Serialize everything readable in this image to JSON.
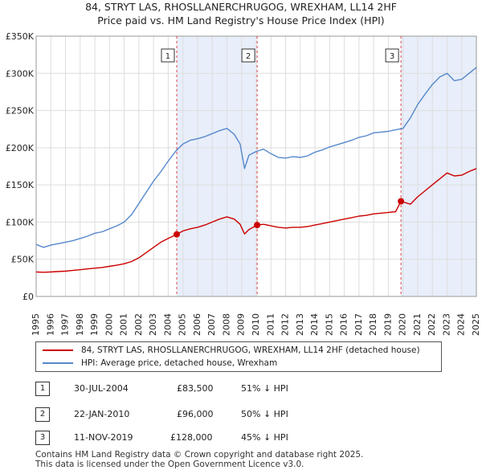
{
  "title_line1": "84, STRYT LAS, RHOSLLANERCHRUGOG, WREXHAM, LL14 2HF",
  "title_line2": "Price paid vs. HM Land Registry's House Price Index (HPI)",
  "legend": [
    {
      "label": "84, STRYT LAS, RHOSLLANERCHRUGOG, WREXHAM, LL14 2HF (detached house)",
      "color": "#cc0000"
    },
    {
      "label": "HPI: Average price, detached house, Wrexham",
      "color": "#5588cc"
    }
  ],
  "transactions": [
    {
      "num": "1",
      "date": "30-JUL-2004",
      "price": "£83,500",
      "hpi": "51% ↓ HPI"
    },
    {
      "num": "2",
      "date": "22-JAN-2010",
      "price": "£96,000",
      "hpi": "50% ↓ HPI"
    },
    {
      "num": "3",
      "date": "11-NOV-2019",
      "price": "£128,000",
      "hpi": "45% ↓ HPI"
    }
  ],
  "footer_line1": "Contains HM Land Registry data © Crown copyright and database right 2025.",
  "footer_line2": "This data is licensed under the Open Government Licence v3.0.",
  "chart_data": {
    "type": "line",
    "title": "Price paid vs. HM Land Registry's House Price Index (HPI)",
    "xlabel": "",
    "ylabel": "",
    "xlim": [
      1995,
      2025
    ],
    "ylim": [
      0,
      350000
    ],
    "y_ticks": [
      0,
      50000,
      100000,
      150000,
      200000,
      250000,
      300000,
      350000
    ],
    "y_tick_labels": [
      "£0",
      "£50K",
      "£100K",
      "£150K",
      "£200K",
      "£250K",
      "£300K",
      "£350K"
    ],
    "x_ticks": [
      1995,
      1996,
      1997,
      1998,
      1999,
      2000,
      2001,
      2002,
      2003,
      2004,
      2005,
      2006,
      2007,
      2008,
      2009,
      2010,
      2011,
      2012,
      2013,
      2014,
      2015,
      2016,
      2017,
      2018,
      2019,
      2020,
      2021,
      2022,
      2023,
      2024,
      2025
    ],
    "series": [
      {
        "name": "HPI: Average price, detached house, Wrexham",
        "color": "#5588cc",
        "x": [
          1995.0,
          1995.5,
          1996.0,
          1996.5,
          1997.0,
          1997.5,
          1998.0,
          1998.5,
          1999.0,
          1999.5,
          2000.0,
          2000.5,
          2001.0,
          2001.5,
          2002.0,
          2002.5,
          2003.0,
          2003.5,
          2004.0,
          2004.5,
          2005.0,
          2005.5,
          2006.0,
          2006.5,
          2007.0,
          2007.5,
          2008.0,
          2008.5,
          2008.9,
          2009.2,
          2009.5,
          2010.0,
          2010.5,
          2011.0,
          2011.5,
          2012.0,
          2012.5,
          2013.0,
          2013.5,
          2014.0,
          2014.5,
          2015.0,
          2015.5,
          2016.0,
          2016.5,
          2017.0,
          2017.5,
          2018.0,
          2018.5,
          2019.0,
          2019.5,
          2020.0,
          2020.5,
          2021.0,
          2021.5,
          2022.0,
          2022.5,
          2023.0,
          2023.5,
          2024.0,
          2024.5,
          2025.0
        ],
        "values": [
          70000,
          66000,
          69000,
          71000,
          73000,
          75000,
          78000,
          81000,
          85000,
          87000,
          91000,
          95000,
          100000,
          110000,
          125000,
          140000,
          155000,
          168000,
          182000,
          195000,
          205000,
          210000,
          212000,
          215000,
          219000,
          223000,
          226000,
          218000,
          205000,
          172000,
          190000,
          195000,
          198000,
          192000,
          187000,
          186000,
          188000,
          187000,
          189000,
          194000,
          197000,
          201000,
          204000,
          207000,
          210000,
          214000,
          216000,
          220000,
          221000,
          222000,
          224000,
          226000,
          240000,
          258000,
          272000,
          285000,
          295000,
          300000,
          290000,
          292000,
          300000,
          308000
        ]
      },
      {
        "name": "84, STRYT LAS, RHOSLLANERCHRUGOG, WREXHAM, LL14 2HF (detached house)",
        "color": "#cc0000",
        "x": [
          1995.0,
          1995.5,
          1996.0,
          1996.5,
          1997.0,
          1997.5,
          1998.0,
          1998.5,
          1999.0,
          1999.5,
          2000.0,
          2000.5,
          2001.0,
          2001.5,
          2002.0,
          2002.5,
          2003.0,
          2003.5,
          2004.0,
          2004.58,
          2005.0,
          2005.5,
          2006.0,
          2006.5,
          2007.0,
          2007.5,
          2008.0,
          2008.5,
          2008.9,
          2009.2,
          2009.5,
          2010.06,
          2010.5,
          2011.0,
          2011.5,
          2012.0,
          2012.5,
          2013.0,
          2013.5,
          2014.0,
          2014.5,
          2015.0,
          2015.5,
          2016.0,
          2016.5,
          2017.0,
          2017.5,
          2018.0,
          2018.5,
          2019.0,
          2019.5,
          2019.86,
          2020.5,
          2021.0,
          2021.5,
          2022.0,
          2022.5,
          2023.0,
          2023.5,
          2024.0,
          2024.5,
          2025.0
        ],
        "values": [
          33000,
          32500,
          33000,
          33500,
          34000,
          35000,
          36000,
          37000,
          38000,
          39000,
          40500,
          42000,
          44000,
          47000,
          52000,
          59000,
          66000,
          73000,
          78000,
          83500,
          88000,
          91000,
          93000,
          96000,
          100000,
          104000,
          107000,
          104000,
          97000,
          84000,
          90000,
          96000,
          97000,
          95000,
          93000,
          92000,
          93000,
          93000,
          94000,
          96000,
          98000,
          100000,
          102000,
          104000,
          106000,
          108000,
          109000,
          111000,
          112000,
          113000,
          114000,
          128000,
          124000,
          134000,
          142000,
          150000,
          158000,
          166000,
          162000,
          163000,
          168000,
          172000
        ]
      }
    ],
    "markers": [
      {
        "label": "1",
        "x": 2004.58,
        "y": 83500
      },
      {
        "label": "2",
        "x": 2010.06,
        "y": 96000
      },
      {
        "label": "3",
        "x": 2019.86,
        "y": 128000
      }
    ],
    "shaded_spans": [
      [
        2004.58,
        2010.06
      ],
      [
        2019.86,
        2025.0
      ]
    ]
  }
}
